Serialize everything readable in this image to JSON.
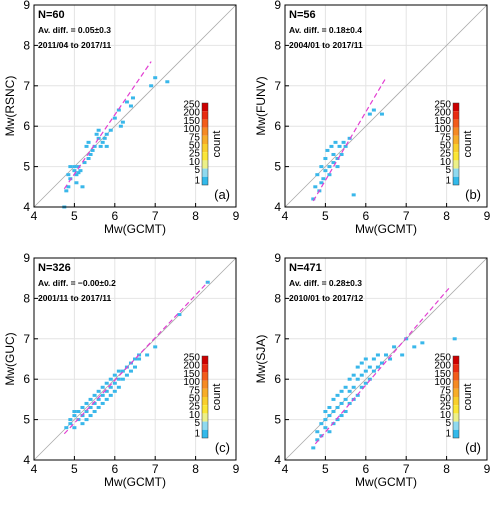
{
  "colorbar": {
    "ticks": [
      "250",
      "200",
      "150",
      "100",
      "75",
      "50",
      "25",
      "10",
      "5",
      "1"
    ],
    "colors": [
      "#cc0000",
      "#e82a10",
      "#f25c1a",
      "#f58a23",
      "#f7ad28",
      "#f9cf2c",
      "#fbe635",
      "#ecf088",
      "#8fd9ef",
      "#33b9ea"
    ],
    "label": "count"
  },
  "colors": {
    "fit_line": "#e23fd2",
    "one_to_one": "#aaaaaa",
    "points": "#39b7ea",
    "grid": "#e4e4e4"
  },
  "chart_data": [
    {
      "type": "scatter",
      "panel": "(a)",
      "n_label": "N=60",
      "diff_label": "Av. diff. = 0.05±0.3",
      "period": "2011/04 to 2017/11",
      "xlabel": "Mw(GCMT)",
      "ylabel": "Mw(RSNC)",
      "xlim": [
        4,
        9
      ],
      "ylim": [
        4,
        9
      ],
      "xticks": [
        "4",
        "5",
        "6",
        "7",
        "8",
        "9"
      ],
      "yticks": [
        "4",
        "5",
        "6",
        "7",
        "8",
        "9"
      ],
      "fit_line": [
        [
          4.75,
          4.45
        ],
        [
          6.9,
          7.6
        ]
      ],
      "points": [
        [
          4.75,
          4.0
        ],
        [
          4.8,
          4.4
        ],
        [
          4.85,
          4.5
        ],
        [
          4.9,
          4.7
        ],
        [
          4.85,
          4.8
        ],
        [
          4.9,
          5.0
        ],
        [
          5.0,
          4.9
        ],
        [
          5.0,
          5.0
        ],
        [
          5.05,
          4.6
        ],
        [
          5.05,
          4.8
        ],
        [
          5.1,
          4.85
        ],
        [
          5.1,
          5.0
        ],
        [
          5.15,
          4.9
        ],
        [
          5.2,
          4.5
        ],
        [
          5.25,
          5.1
        ],
        [
          5.3,
          5.5
        ],
        [
          5.35,
          5.2
        ],
        [
          5.35,
          5.6
        ],
        [
          5.4,
          5.3
        ],
        [
          5.45,
          5.4
        ],
        [
          5.5,
          5.5
        ],
        [
          5.55,
          5.8
        ],
        [
          5.6,
          5.7
        ],
        [
          5.6,
          5.9
        ],
        [
          5.65,
          5.5
        ],
        [
          5.7,
          5.6
        ],
        [
          5.75,
          5.7
        ],
        [
          5.8,
          5.8
        ],
        [
          5.8,
          5.5
        ],
        [
          5.9,
          5.9
        ],
        [
          6.0,
          6.2
        ],
        [
          6.1,
          6.4
        ],
        [
          6.15,
          6.0
        ],
        [
          6.2,
          6.1
        ],
        [
          6.3,
          6.6
        ],
        [
          6.4,
          6.5
        ],
        [
          6.45,
          6.7
        ],
        [
          6.9,
          7.0
        ],
        [
          7.0,
          7.2
        ],
        [
          7.3,
          7.1
        ]
      ]
    },
    {
      "type": "scatter",
      "panel": "(b)",
      "n_label": "N=56",
      "diff_label": "Av. diff. = 0.18±0.4",
      "period": "2004/01 to 2017/11",
      "xlabel": "Mw(GCMT)",
      "ylabel": "Mw(FUNV)",
      "xlim": [
        4,
        9
      ],
      "ylim": [
        4,
        9
      ],
      "xticks": [
        "4",
        "5",
        "6",
        "7",
        "8",
        "9"
      ],
      "yticks": [
        "4",
        "5",
        "6",
        "7",
        "8",
        "9"
      ],
      "fit_line": [
        [
          4.7,
          4.15
        ],
        [
          6.5,
          7.2
        ]
      ],
      "points": [
        [
          4.7,
          4.2
        ],
        [
          4.75,
          4.5
        ],
        [
          4.8,
          4.8
        ],
        [
          4.85,
          4.4
        ],
        [
          4.9,
          4.6
        ],
        [
          4.9,
          5.0
        ],
        [
          4.95,
          4.7
        ],
        [
          5.0,
          4.9
        ],
        [
          5.0,
          5.2
        ],
        [
          5.05,
          5.4
        ],
        [
          5.1,
          5.0
        ],
        [
          5.1,
          4.8
        ],
        [
          5.15,
          5.5
        ],
        [
          5.2,
          5.1
        ],
        [
          5.2,
          5.3
        ],
        [
          5.25,
          5.6
        ],
        [
          5.3,
          5.2
        ],
        [
          5.3,
          5.0
        ],
        [
          5.35,
          5.5
        ],
        [
          5.4,
          5.3
        ],
        [
          5.45,
          5.6
        ],
        [
          5.5,
          5.5
        ],
        [
          5.6,
          5.7
        ],
        [
          5.7,
          4.3
        ],
        [
          6.1,
          6.3
        ],
        [
          6.2,
          6.4
        ],
        [
          6.4,
          6.3
        ]
      ]
    },
    {
      "type": "scatter",
      "panel": "(c)",
      "n_label": "N=326",
      "diff_label": "Av. diff. = −0.00±0.2",
      "period": "2001/11 to 2017/11",
      "xlabel": "Mw(GCMT)",
      "ylabel": "Mw(GUC)",
      "xlim": [
        4,
        9
      ],
      "ylim": [
        4,
        9
      ],
      "xticks": [
        "4",
        "5",
        "6",
        "7",
        "8",
        "9"
      ],
      "yticks": [
        "4",
        "5",
        "6",
        "7",
        "8",
        "9"
      ],
      "fit_line": [
        [
          4.75,
          4.65
        ],
        [
          8.3,
          8.4
        ]
      ],
      "points": [
        [
          4.8,
          4.8
        ],
        [
          4.9,
          4.9
        ],
        [
          4.9,
          5.0
        ],
        [
          5.0,
          4.8
        ],
        [
          5.0,
          5.1
        ],
        [
          5.0,
          5.2
        ],
        [
          5.1,
          5.0
        ],
        [
          5.1,
          5.2
        ],
        [
          5.2,
          4.9
        ],
        [
          5.2,
          5.1
        ],
        [
          5.2,
          5.3
        ],
        [
          5.3,
          5.0
        ],
        [
          5.3,
          5.2
        ],
        [
          5.3,
          5.4
        ],
        [
          5.4,
          5.1
        ],
        [
          5.4,
          5.3
        ],
        [
          5.4,
          5.5
        ],
        [
          5.5,
          5.2
        ],
        [
          5.5,
          5.4
        ],
        [
          5.5,
          5.6
        ],
        [
          5.6,
          5.3
        ],
        [
          5.6,
          5.5
        ],
        [
          5.6,
          5.7
        ],
        [
          5.7,
          5.4
        ],
        [
          5.7,
          5.6
        ],
        [
          5.7,
          5.8
        ],
        [
          5.8,
          5.5
        ],
        [
          5.8,
          5.7
        ],
        [
          5.8,
          5.9
        ],
        [
          5.9,
          5.6
        ],
        [
          5.9,
          5.8
        ],
        [
          5.9,
          6.0
        ],
        [
          6.0,
          5.7
        ],
        [
          6.0,
          5.9
        ],
        [
          6.0,
          6.1
        ],
        [
          6.1,
          5.8
        ],
        [
          6.1,
          6.0
        ],
        [
          6.1,
          6.2
        ],
        [
          6.2,
          6.0
        ],
        [
          6.2,
          6.2
        ],
        [
          6.3,
          6.1
        ],
        [
          6.3,
          6.3
        ],
        [
          6.4,
          6.2
        ],
        [
          6.4,
          6.4
        ],
        [
          6.5,
          6.3
        ],
        [
          6.5,
          6.5
        ],
        [
          6.6,
          6.5
        ],
        [
          6.6,
          6.6
        ],
        [
          6.8,
          6.6
        ],
        [
          7.0,
          6.8
        ],
        [
          7.6,
          7.6
        ],
        [
          8.3,
          8.4
        ]
      ]
    },
    {
      "type": "scatter",
      "panel": "(d)",
      "n_label": "N=471",
      "diff_label": "Av. diff. = 0.28±0.3",
      "period": "2010/01 to 2017/12",
      "xlabel": "Mw(GCMT)",
      "ylabel": "Mw(SJA)",
      "xlim": [
        4,
        9
      ],
      "ylim": [
        4,
        9
      ],
      "xticks": [
        "4",
        "5",
        "6",
        "7",
        "8",
        "9"
      ],
      "yticks": [
        "4",
        "5",
        "6",
        "7",
        "8",
        "9"
      ],
      "fit_line": [
        [
          4.75,
          4.4
        ],
        [
          8.1,
          8.3
        ]
      ],
      "points": [
        [
          4.7,
          4.3
        ],
        [
          4.8,
          4.5
        ],
        [
          4.8,
          4.7
        ],
        [
          4.9,
          4.6
        ],
        [
          4.9,
          4.9
        ],
        [
          5.0,
          4.8
        ],
        [
          5.0,
          5.0
        ],
        [
          5.0,
          5.2
        ],
        [
          5.1,
          4.7
        ],
        [
          5.1,
          5.1
        ],
        [
          5.1,
          5.3
        ],
        [
          5.2,
          4.9
        ],
        [
          5.2,
          5.2
        ],
        [
          5.2,
          5.5
        ],
        [
          5.3,
          5.0
        ],
        [
          5.3,
          5.3
        ],
        [
          5.3,
          5.6
        ],
        [
          5.4,
          5.1
        ],
        [
          5.4,
          5.4
        ],
        [
          5.4,
          5.7
        ],
        [
          5.5,
          5.2
        ],
        [
          5.5,
          5.5
        ],
        [
          5.5,
          5.8
        ],
        [
          5.6,
          5.4
        ],
        [
          5.6,
          5.7
        ],
        [
          5.6,
          6.0
        ],
        [
          5.7,
          5.5
        ],
        [
          5.7,
          5.8
        ],
        [
          5.7,
          6.1
        ],
        [
          5.8,
          5.6
        ],
        [
          5.8,
          6.0
        ],
        [
          5.8,
          6.3
        ],
        [
          5.9,
          5.8
        ],
        [
          5.9,
          6.1
        ],
        [
          5.9,
          6.4
        ],
        [
          6.0,
          5.9
        ],
        [
          6.0,
          6.2
        ],
        [
          6.0,
          6.5
        ],
        [
          6.1,
          6.0
        ],
        [
          6.1,
          6.3
        ],
        [
          6.2,
          6.2
        ],
        [
          6.2,
          6.5
        ],
        [
          6.3,
          6.3
        ],
        [
          6.3,
          6.6
        ],
        [
          6.4,
          6.4
        ],
        [
          6.5,
          6.6
        ],
        [
          6.6,
          6.5
        ],
        [
          6.7,
          6.8
        ],
        [
          6.9,
          6.6
        ],
        [
          7.0,
          7.0
        ],
        [
          7.2,
          6.8
        ],
        [
          7.4,
          6.9
        ],
        [
          8.2,
          7.0
        ]
      ]
    }
  ]
}
